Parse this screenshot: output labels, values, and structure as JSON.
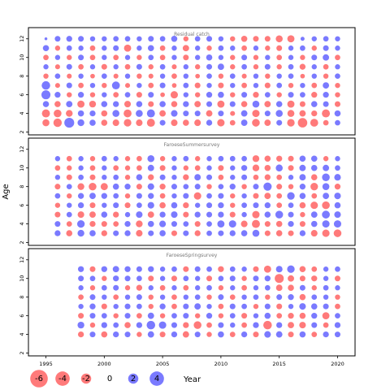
{
  "chart_data": {
    "type": "scatter",
    "subtype": "residual-bubble",
    "xlabel": "Year",
    "ylabel": "Age",
    "x_ticks": [
      1995,
      2000,
      2005,
      2010,
      2015,
      2020
    ],
    "y_ticks": [
      2,
      4,
      6,
      8,
      10,
      12
    ],
    "xlim": [
      1993.5,
      2021.5
    ],
    "ylim": [
      1.7,
      13.2
    ],
    "colors": {
      "positive": "#4d4dff",
      "negative": "#ff4d4d"
    },
    "legend": {
      "placement": "bottom-left",
      "entries": [
        {
          "label": "-6",
          "value": -6
        },
        {
          "label": "-4",
          "value": -4
        },
        {
          "label": "-2",
          "value": -2
        },
        {
          "label": "0",
          "value": 0
        },
        {
          "label": "2",
          "value": 2
        },
        {
          "label": "4",
          "value": 4
        }
      ]
    },
    "panels": [
      {
        "title": "Residual catch",
        "years": [
          1995,
          1996,
          1997,
          1998,
          1999,
          2000,
          2001,
          2002,
          2003,
          2004,
          2005,
          2006,
          2007,
          2008,
          2009,
          2010,
          2011,
          2012,
          2013,
          2014,
          2015,
          2016,
          2017,
          2018,
          2019,
          2020
        ],
        "ages": [
          3,
          4,
          5,
          6,
          7,
          8,
          9,
          10,
          11,
          12
        ],
        "residuals": [
          [
            -1.8,
            -2.6,
            3.6,
            1.7,
            1.4,
            -1.4,
            -1.6,
            -2.1,
            -1.6,
            -2.4,
            1.2,
            -1.6,
            -1.4,
            -1.6,
            1.3,
            -2.0,
            -1.1,
            1.5,
            -2.2,
            -1.5,
            1.2,
            -2.1,
            -3.3,
            -2.3,
            -1.1,
            1.1
          ],
          [
            -2.4,
            -2.2,
            -1.7,
            1.4,
            1.3,
            -1.4,
            1.8,
            -2.3,
            1.8,
            2.4,
            -1.5,
            1.6,
            1.2,
            1.2,
            -1.5,
            1.2,
            -0.9,
            1.5,
            -2.0,
            1.2,
            1.8,
            -1.8,
            -1.5,
            -1.3,
            -2.4,
            1.4
          ],
          [
            1.4,
            -1.4,
            1.5,
            -1.9,
            -1.7,
            1.4,
            1.3,
            -1.6,
            1.4,
            -1.2,
            1.4,
            -1.4,
            1.3,
            -1.5,
            1.2,
            -1.9,
            1.2,
            -1.4,
            1.8,
            -1.5,
            1.4,
            -1.9,
            -1.2,
            1.4,
            1.2,
            -1.2
          ],
          [
            3.0,
            1.3,
            -1.0,
            1.3,
            -1.0,
            1.0,
            -1.1,
            1.1,
            -1.2,
            1.2,
            -0.8,
            -2.0,
            1.0,
            -1.0,
            1.3,
            1.4,
            -1.0,
            1.2,
            -1.3,
            1.1,
            -1.0,
            1.2,
            1.1,
            -1.3,
            1.3,
            -1.0
          ],
          [
            2.7,
            -0.9,
            1.2,
            -1.1,
            1.0,
            -1.0,
            2.3,
            -0.9,
            1.0,
            -1.1,
            1.2,
            -0.8,
            1.1,
            -1.2,
            1.0,
            -1.2,
            1.0,
            -1.1,
            1.0,
            -1.2,
            1.1,
            -1.0,
            1.0,
            -1.1,
            1.5,
            -1.0
          ],
          [
            -1.0,
            1.1,
            -0.9,
            1.0,
            -0.8,
            1.1,
            -0.9,
            1.0,
            -1.0,
            -0.9,
            1.0,
            -1.1,
            1.0,
            -0.8,
            1.1,
            -1.0,
            1.1,
            -0.9,
            1.0,
            -1.0,
            1.0,
            1.1,
            -0.8,
            1.0,
            -1.0,
            1.1
          ],
          [
            1.0,
            -0.9,
            1.2,
            -1.1,
            1.0,
            -1.2,
            1.0,
            -1.1,
            1.2,
            -1.0,
            1.1,
            -0.9,
            1.0,
            -1.0,
            1.2,
            1.5,
            -1.0,
            1.1,
            -1.0,
            1.2,
            -1.0,
            1.1,
            -1.3,
            1.0,
            -1.1,
            1.0
          ],
          [
            -1.1,
            1.0,
            -1.0,
            1.2,
            -1.1,
            1.0,
            -1.1,
            1.0,
            -1.0,
            1.1,
            -1.1,
            1.0,
            -1.2,
            1.0,
            1.4,
            1.0,
            -1.0,
            1.2,
            -1.0,
            1.0,
            -1.1,
            1.0,
            -1.0,
            1.2,
            1.5,
            -1.1
          ],
          [
            1.4,
            -1.0,
            1.1,
            1.0,
            -1.1,
            1.0,
            1.2,
            -1.9,
            1.0,
            1.4,
            -1.1,
            1.0,
            -1.5,
            1.0,
            -1.0,
            1.1,
            1.0,
            -1.1,
            1.0,
            -1.0,
            -1.2,
            1.0,
            1.1,
            -1.0,
            1.2,
            1.0
          ],
          [
            0.3,
            1.2,
            1.3,
            1.2,
            1.0,
            1.0,
            1.1,
            1.1,
            1.0,
            1.2,
            1.1,
            1.4,
            -1.0,
            1.1,
            1.2,
            1.0,
            -1.0,
            -1.4,
            -1.2,
            -1.2,
            -1.8,
            -1.9,
            0.6,
            1.0,
            1.1,
            1.0
          ]
        ]
      },
      {
        "title": "FaroeseSummersurvey",
        "years": [
          1996,
          1997,
          1998,
          1999,
          2000,
          2001,
          2002,
          2003,
          2004,
          2005,
          2006,
          2007,
          2008,
          2009,
          2010,
          2011,
          2012,
          2013,
          2014,
          2015,
          2016,
          2017,
          2018,
          2019,
          2020
        ],
        "ages": [
          3,
          4,
          5,
          6,
          7,
          8,
          9,
          10,
          11
        ],
        "residuals": [
          [
            1.3,
            -1.4,
            1.7,
            1.4,
            -1.3,
            1.2,
            1.3,
            -1.6,
            1.2,
            1.4,
            -1.2,
            1.2,
            -1.3,
            1.1,
            1.2,
            1.3,
            1.4,
            1.8,
            -1.2,
            -1.4,
            -1.2,
            1.3,
            -1.6,
            -2.0,
            -2.2
          ],
          [
            1.2,
            -1.1,
            2.1,
            -1.3,
            -1.2,
            -1.1,
            1.3,
            -1.7,
            1.4,
            1.6,
            1.2,
            1.1,
            -1.2,
            1.1,
            1.9,
            2.0,
            -1.6,
            -2.4,
            -1.2,
            -1.4,
            1.3,
            -1.2,
            1.4,
            2.0,
            2.0
          ],
          [
            -1.2,
            1.1,
            -1.6,
            -1.5,
            1.4,
            -1.3,
            1.0,
            1.6,
            -1.5,
            1.3,
            1.6,
            -1.2,
            1.3,
            1.2,
            1.3,
            -1.2,
            1.0,
            -2.0,
            1.4,
            2.2,
            1.2,
            -1.0,
            1.5,
            2.3,
            1.6
          ],
          [
            -1.0,
            1.0,
            1.3,
            -1.2,
            1.0,
            1.2,
            -1.2,
            1.1,
            1.6,
            -1.4,
            1.4,
            -1.3,
            1.0,
            1.2,
            1.3,
            -1.0,
            1.1,
            1.2,
            1.3,
            -1.1,
            1.1,
            -1.4,
            -2.0,
            -2.2,
            1.4
          ],
          [
            1.1,
            -1.0,
            1.3,
            1.5,
            1.3,
            1.1,
            -1.0,
            1.2,
            1.3,
            -1.1,
            1.0,
            1.2,
            -2.0,
            1.1,
            1.2,
            -1.0,
            1.0,
            -1.2,
            -1.5,
            -1.1,
            2.1,
            1.4,
            -1.1,
            1.5,
            1.6
          ],
          [
            -1.2,
            1.1,
            -1.7,
            -2.2,
            -1.9,
            1.4,
            1.3,
            -1.2,
            1.6,
            -1.3,
            1.2,
            1.1,
            1.2,
            -1.0,
            1.1,
            1.3,
            -1.0,
            1.2,
            2.5,
            -1.2,
            -1.0,
            1.3,
            -2.1,
            1.8,
            -1.3
          ],
          [
            1.0,
            -1.2,
            1.1,
            -1.2,
            1.0,
            1.1,
            -1.0,
            1.4,
            -1.3,
            1.2,
            1.0,
            -1.3,
            1.5,
            1.2,
            -1.1,
            1.0,
            1.2,
            -1.1,
            -1.3,
            -1.1,
            1.0,
            1.5,
            -1.4,
            2.2,
            1.6
          ],
          [
            -1.1,
            -1.0,
            1.0,
            -1.1,
            1.0,
            -1.1,
            -1.0,
            -1.1,
            1.5,
            -1.2,
            1.0,
            -1.0,
            -1.1,
            1.0,
            -1.2,
            1.0,
            1.3,
            -1.7,
            -1.4,
            1.8,
            -1.2,
            1.5,
            1.4,
            1.5,
            1.1
          ],
          [
            1.0,
            -1.1,
            1.0,
            -1.0,
            1.1,
            1.0,
            -1.0,
            -1.1,
            1.8,
            -1.0,
            1.0,
            1.1,
            -1.0,
            1.0,
            1.1,
            1.1,
            1.1,
            -1.7,
            -1.4,
            -1.3,
            -1.2,
            1.4,
            1.4,
            -1.0,
            1.0
          ]
        ]
      },
      {
        "title": "FaroeseSpringsurvey",
        "years": [
          1998,
          1999,
          2000,
          2001,
          2002,
          2003,
          2004,
          2005,
          2006,
          2007,
          2008,
          2009,
          2010,
          2011,
          2012,
          2013,
          2014,
          2015,
          2016,
          2017,
          2018,
          2019,
          2020
        ],
        "ages": [
          4,
          5,
          6,
          7,
          8,
          9,
          10,
          11
        ],
        "residuals": [
          [
            -1.3,
            1.2,
            -1.4,
            1.3,
            1.2,
            -1.0,
            1.5,
            -1.2,
            1.3,
            -1.5,
            1.2,
            -1.0,
            1.4,
            -1.1,
            1.3,
            -1.2,
            1.6,
            1.5,
            -1.2,
            1.4,
            -1.1,
            1.3,
            1.2
          ],
          [
            1.7,
            -1.0,
            1.3,
            1.1,
            -1.4,
            1.3,
            2.7,
            2.0,
            1.2,
            -1.3,
            -2.2,
            -1.1,
            1.2,
            1.0,
            -1.1,
            1.3,
            -2.7,
            1.3,
            -1.5,
            -1.6,
            1.2,
            -1.1,
            1.3
          ],
          [
            -1.2,
            1.2,
            1.1,
            -1.0,
            1.2,
            -1.1,
            1.5,
            -1.0,
            1.1,
            1.2,
            -1.0,
            1.3,
            -1.0,
            1.1,
            -1.2,
            1.0,
            1.4,
            -1.1,
            -1.3,
            -1.4,
            1.3,
            -1.9,
            1.1
          ],
          [
            1.0,
            1.3,
            -1.2,
            1.0,
            1.2,
            1.1,
            -1.0,
            1.3,
            -1.1,
            1.2,
            1.5,
            1.0,
            -1.1,
            1.2,
            1.1,
            -1.0,
            1.2,
            -1.2,
            1.0,
            1.6,
            1.4,
            1.2,
            -1.1
          ],
          [
            -1.1,
            1.2,
            1.0,
            -1.1,
            1.0,
            1.2,
            -1.0,
            1.0,
            -1.1,
            1.0,
            1.1,
            -1.0,
            1.2,
            -1.1,
            1.0,
            1.1,
            -1.0,
            1.2,
            1.3,
            -1.4,
            1.1,
            1.0,
            -1.0
          ],
          [
            1.0,
            -1.0,
            1.1,
            1.2,
            -1.0,
            -1.3,
            1.0,
            -1.1,
            1.0,
            -1.1,
            1.0,
            1.1,
            -1.0,
            1.0,
            -1.1,
            1.0,
            1.1,
            -1.5,
            -1.4,
            1.2,
            -1.0,
            1.1,
            1.0
          ],
          [
            1.2,
            1.1,
            -1.0,
            1.3,
            1.2,
            1.1,
            -1.2,
            1.0,
            -1.2,
            1.1,
            1.0,
            -1.2,
            1.1,
            1.2,
            -1.0,
            1.2,
            1.3,
            -3.0,
            -1.5,
            -1.2,
            -1.3,
            1.0,
            -1.2
          ],
          [
            1.3,
            -1.2,
            1.3,
            1.5,
            1.3,
            1.2,
            1.3,
            1.0,
            1.1,
            -1.2,
            1.2,
            1.1,
            -1.3,
            1.1,
            1.0,
            -1.2,
            -1.9,
            1.6,
            2.1,
            -1.4,
            -1.1,
            1.0,
            1.1
          ]
        ]
      }
    ]
  }
}
